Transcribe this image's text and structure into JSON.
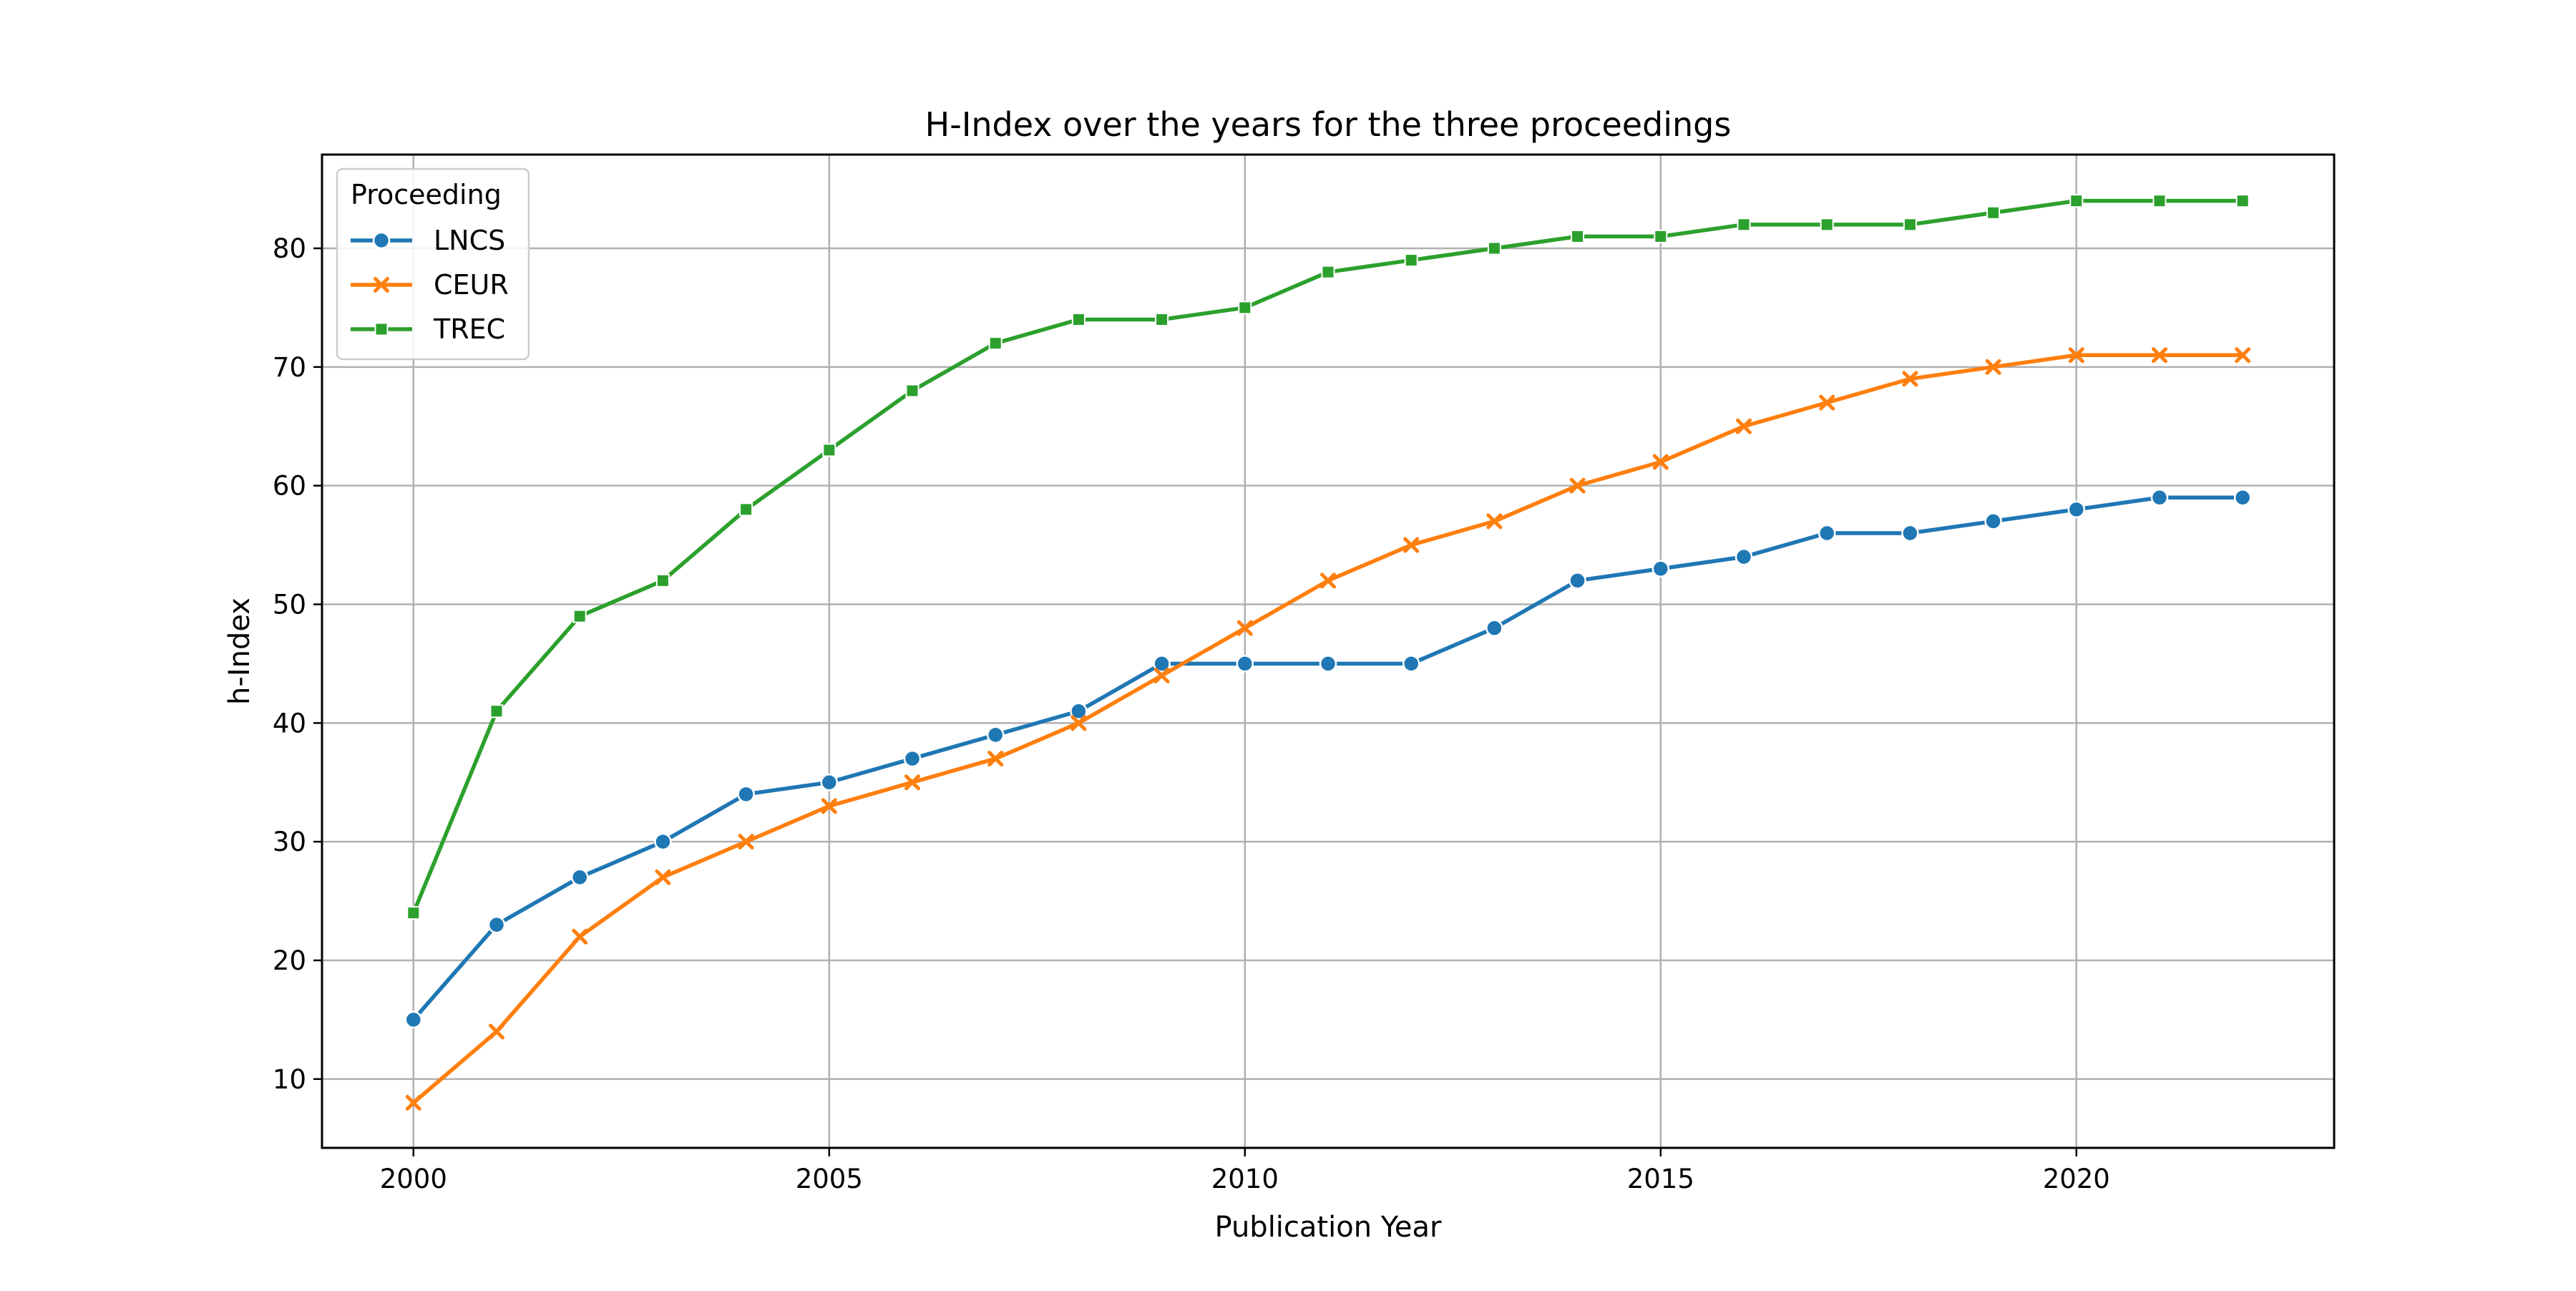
{
  "chart_data": {
    "type": "line",
    "title": "H-Index over the years for the three proceedings",
    "xlabel": "Publication Year",
    "ylabel": "h-Index",
    "x": [
      2000,
      2001,
      2002,
      2003,
      2004,
      2005,
      2006,
      2007,
      2008,
      2009,
      2010,
      2011,
      2012,
      2013,
      2014,
      2015,
      2016,
      2017,
      2018,
      2019,
      2020,
      2021,
      2022
    ],
    "xlim": [
      1998.9,
      2023.1
    ],
    "ylim": [
      4.2,
      87.9
    ],
    "x_ticks": [
      2000,
      2005,
      2010,
      2015,
      2020
    ],
    "y_ticks": [
      10,
      20,
      30,
      40,
      50,
      60,
      70,
      80
    ],
    "grid": true,
    "legend": {
      "title": "Proceeding",
      "position": "top-left"
    },
    "series": [
      {
        "name": "LNCS",
        "color": "#1f77b4",
        "marker": "circle",
        "values": [
          15,
          23,
          27,
          30,
          34,
          35,
          37,
          39,
          41,
          45,
          45,
          45,
          45,
          48,
          52,
          53,
          54,
          56,
          56,
          57,
          58,
          59,
          59
        ]
      },
      {
        "name": "CEUR",
        "color": "#ff7f0e",
        "marker": "x",
        "values": [
          8,
          14,
          22,
          27,
          30,
          33,
          35,
          37,
          40,
          44,
          48,
          52,
          55,
          57,
          60,
          62,
          65,
          67,
          69,
          70,
          71,
          71,
          71
        ]
      },
      {
        "name": "TREC",
        "color": "#2ca02c",
        "marker": "square",
        "values": [
          24,
          41,
          49,
          52,
          58,
          63,
          68,
          72,
          74,
          74,
          75,
          78,
          79,
          80,
          81,
          81,
          82,
          82,
          82,
          83,
          84,
          84,
          84
        ]
      }
    ]
  }
}
